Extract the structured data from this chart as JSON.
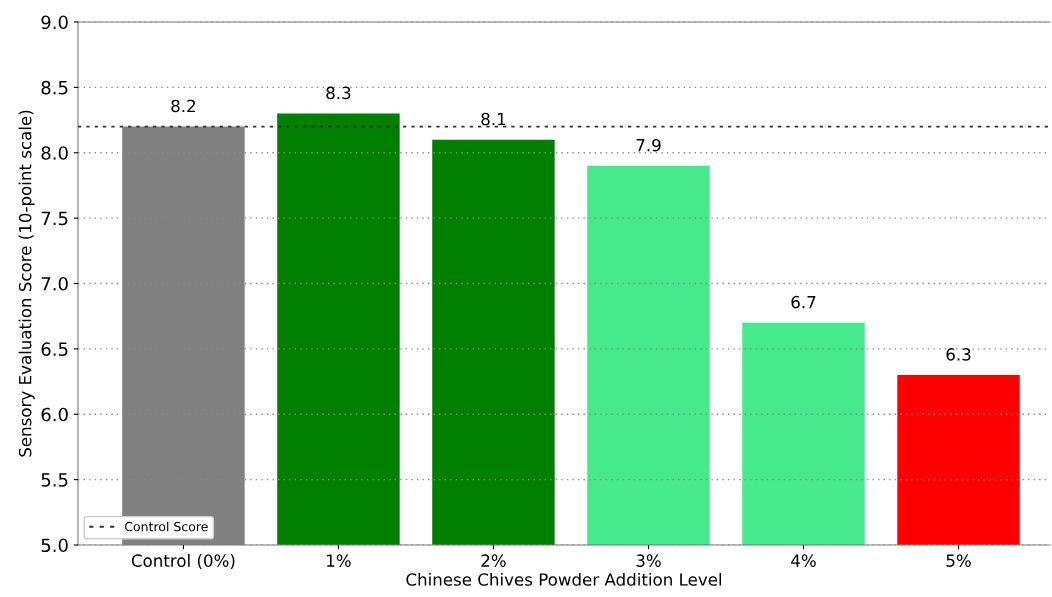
{
  "chart_data": {
    "type": "bar",
    "xlabel": "Chinese Chives Powder Addition Level",
    "ylabel": "Sensory Evaluation Score (10-point scale)",
    "categories": [
      "Control (0%)",
      "1%",
      "2%",
      "3%",
      "4%",
      "5%"
    ],
    "values": [
      8.2,
      8.3,
      8.1,
      7.9,
      6.7,
      6.3
    ],
    "colors": [
      "#808080",
      "#007f00",
      "#007f00",
      "#46ea8c",
      "#46ea8c",
      "#ff0000"
    ],
    "ylim": [
      5.0,
      9.0
    ],
    "yticks": [
      {
        "value": 5.0,
        "label": "5.0"
      },
      {
        "value": 5.5,
        "label": "5.5"
      },
      {
        "value": 6.0,
        "label": "6.0"
      },
      {
        "value": 6.5,
        "label": "6.5"
      },
      {
        "value": 7.0,
        "label": "7.0"
      },
      {
        "value": 7.5,
        "label": "7.5"
      },
      {
        "value": 8.0,
        "label": "8.0"
      },
      {
        "value": 8.5,
        "label": "8.5"
      },
      {
        "value": 9.0,
        "label": "9.0"
      }
    ],
    "grid": "y",
    "data_labels": true,
    "legend": "bottom left",
    "ref_lines": [
      {
        "axis": "y",
        "value": 8.2,
        "label": "Control Score",
        "color": "#333333",
        "line_style": "dotted"
      }
    ]
  }
}
